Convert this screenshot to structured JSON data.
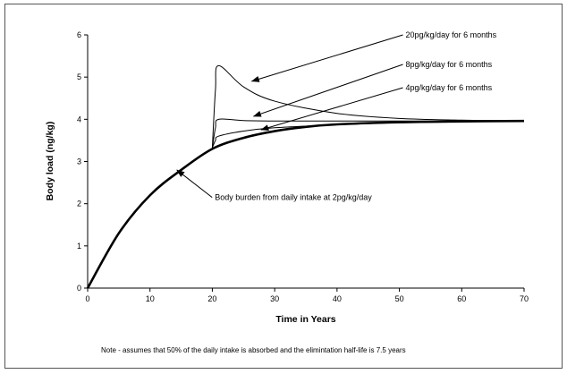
{
  "chart_data": {
    "type": "line",
    "xlabel": "Time in Years",
    "ylabel": "Body load (ng/kg)",
    "xlim": [
      0,
      70
    ],
    "ylim": [
      0,
      6
    ],
    "x_ticks": [
      0,
      10,
      20,
      30,
      40,
      50,
      60,
      70
    ],
    "y_ticks": [
      0,
      1,
      2,
      3,
      4,
      5,
      6
    ],
    "grid": false,
    "legend": "none",
    "series": [
      {
        "points": [
          [
            0,
            0
          ],
          [
            5,
            1.3
          ],
          [
            10,
            2.2
          ],
          [
            15,
            2.8
          ],
          [
            20,
            3.3
          ],
          [
            25,
            3.56
          ],
          [
            30,
            3.72
          ],
          [
            35,
            3.82
          ],
          [
            40,
            3.88
          ],
          [
            50,
            3.93
          ],
          [
            60,
            3.95
          ],
          [
            70,
            3.96
          ]
        ]
      },
      {
        "points": [
          [
            20,
            3.33
          ],
          [
            20.5,
            4.7
          ],
          [
            21,
            5.27
          ],
          [
            25,
            4.77
          ],
          [
            30,
            4.43
          ],
          [
            40,
            4.14
          ],
          [
            50,
            4.02
          ],
          [
            60,
            3.98
          ],
          [
            70,
            3.96
          ]
        ]
      },
      {
        "points": [
          [
            20,
            3.33
          ],
          [
            20.5,
            3.8
          ],
          [
            21,
            4.0
          ],
          [
            25,
            3.97
          ],
          [
            30,
            3.96
          ],
          [
            40,
            3.96
          ],
          [
            70,
            3.96
          ]
        ]
      },
      {
        "points": [
          [
            20,
            3.33
          ],
          [
            20.5,
            3.5
          ],
          [
            21,
            3.6
          ],
          [
            25,
            3.72
          ],
          [
            30,
            3.8
          ],
          [
            40,
            3.87
          ],
          [
            50,
            3.92
          ],
          [
            60,
            3.94
          ],
          [
            70,
            3.96
          ]
        ]
      }
    ],
    "annotations": [
      {
        "text": "20pg/kg/day for 6 months",
        "label_x": 51,
        "label_y": 6.0,
        "arrow_to": [
          26.3,
          4.9
        ]
      },
      {
        "text": "8pg/kg/day for 6 months",
        "label_x": 51,
        "label_y": 5.3,
        "arrow_to": [
          26.6,
          4.07
        ]
      },
      {
        "text": "4pg/kg/day for 6 months",
        "label_x": 51,
        "label_y": 4.75,
        "arrow_to": [
          27.8,
          3.75
        ]
      },
      {
        "text": "Body burden from daily intake at 2pg/kg/day",
        "label_x": 20.4,
        "label_y": 2.15,
        "arrow_to": [
          14.3,
          2.8
        ]
      }
    ],
    "note": "Note - assumes that 50% of the daily intake is absorbed and the elimintation half-life is 7.5 years"
  }
}
